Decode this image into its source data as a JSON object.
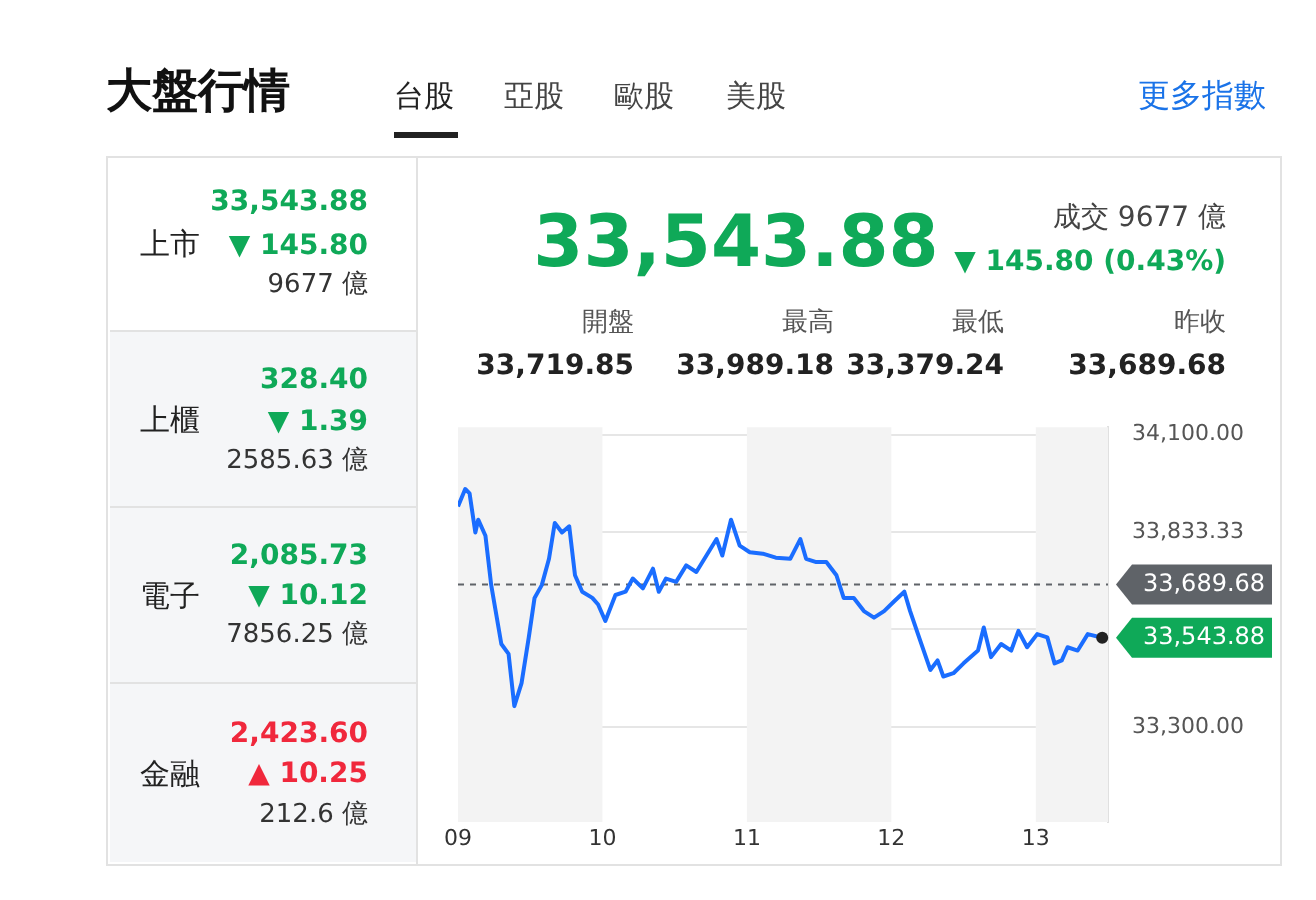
{
  "chart_data": {
    "type": "line",
    "title": "大盤行情",
    "annotations": [
      "台股",
      "亞股",
      "歐股",
      "美股",
      "更多指數",
      "上市",
      "33,543.88",
      "▼ 145.80",
      "9677 億",
      "上櫃",
      "328.40",
      "▼ 1.39",
      "2585.63 億",
      "電子",
      "2,085.73",
      "▼ 10.12",
      "7856.25 億",
      "金融",
      "2,423.60",
      "▲ 10.25",
      "212.6 億",
      "33,543.88",
      "成交 9677 億",
      "▼ 145.80 (0.43%)",
      "開盤",
      "33,719.85",
      "最高",
      "33,989.18",
      "最低",
      "33,379.24",
      "昨收",
      "33,689.68",
      {
        "text": "33,543.88",
        "x": 13.46,
        "y": 33543.88
      }
    ],
    "series": [
      {
        "color": "#1a6dff",
        "x": [
          9.0,
          9.05,
          9.08,
          9.12,
          9.14,
          9.19,
          9.23,
          9.3,
          9.35,
          9.39,
          9.44,
          9.49,
          9.53,
          9.58,
          9.63,
          9.67,
          9.72,
          9.77,
          9.81,
          9.86,
          9.93,
          9.97,
          10.02,
          10.09,
          10.16,
          10.21,
          10.28,
          10.35,
          10.39,
          10.44,
          10.51,
          10.58,
          10.65,
          10.72,
          10.79,
          10.83,
          10.89,
          10.95,
          11.02,
          11.11,
          11.2,
          11.3,
          11.37,
          11.41,
          11.48,
          11.55,
          11.62,
          11.67,
          11.74,
          11.81,
          11.88,
          11.95,
          12.02,
          12.09,
          12.13,
          12.2,
          12.27,
          12.32,
          12.36,
          12.43,
          12.5,
          12.6,
          12.64,
          12.69,
          12.76,
          12.83,
          12.88,
          12.94,
          13.01,
          13.08,
          13.13,
          13.18,
          13.22,
          13.29,
          13.36,
          13.46
        ],
        "values": [
          33903,
          33951,
          33939,
          33832,
          33867,
          33823,
          33688,
          33527,
          33500,
          33357,
          33420,
          33545,
          33653,
          33688,
          33760,
          33858,
          33832,
          33849,
          33715,
          33670,
          33653,
          33635,
          33590,
          33661,
          33670,
          33706,
          33679,
          33733,
          33670,
          33706,
          33697,
          33742,
          33724,
          33769,
          33814,
          33769,
          33867,
          33796,
          33778,
          33774,
          33763,
          33760,
          33814,
          33760,
          33751,
          33751,
          33715,
          33653,
          33653,
          33617,
          33599,
          33617,
          33644,
          33670,
          33617,
          33536,
          33456,
          33482,
          33438,
          33447,
          33474,
          33509,
          33572,
          33491,
          33527,
          33509,
          33563,
          33518,
          33554,
          33545,
          33474,
          33482,
          33518,
          33509,
          33554,
          33544
        ]
      }
    ],
    "xlim": [
      9,
      13.5
    ],
    "xticks": [
      {
        "value": 9,
        "label": "09"
      },
      {
        "value": 10,
        "label": "10"
      },
      {
        "value": 11,
        "label": "11"
      },
      {
        "value": 12,
        "label": "12"
      },
      {
        "value": 13,
        "label": "13"
      }
    ],
    "ylim": [
      33040,
      34120
    ],
    "yticks": [
      {
        "value": 34100,
        "label": "34,100.00"
      },
      {
        "value": 33833.33,
        "label": "33,833.33"
      },
      {
        "value": 33566.67,
        "label": null
      },
      {
        "value": 33300,
        "label": "33,300.00"
      }
    ],
    "ref_lines": [
      {
        "axis": "y",
        "value": 33689.68,
        "label": "33,689.68",
        "color": "#5f6368",
        "line_style": "dashed"
      }
    ],
    "bands": [
      {
        "axis": "x",
        "from": 9,
        "to": 10,
        "color": "#f3f3f3"
      },
      {
        "axis": "x",
        "from": 11,
        "to": 12,
        "color": "#f3f3f3"
      },
      {
        "axis": "x",
        "from": 13,
        "to": 13.5,
        "color": "#f3f3f3"
      }
    ],
    "grid": "y",
    "marker": "none",
    "line_style": "solid",
    "legend": false
  }
}
